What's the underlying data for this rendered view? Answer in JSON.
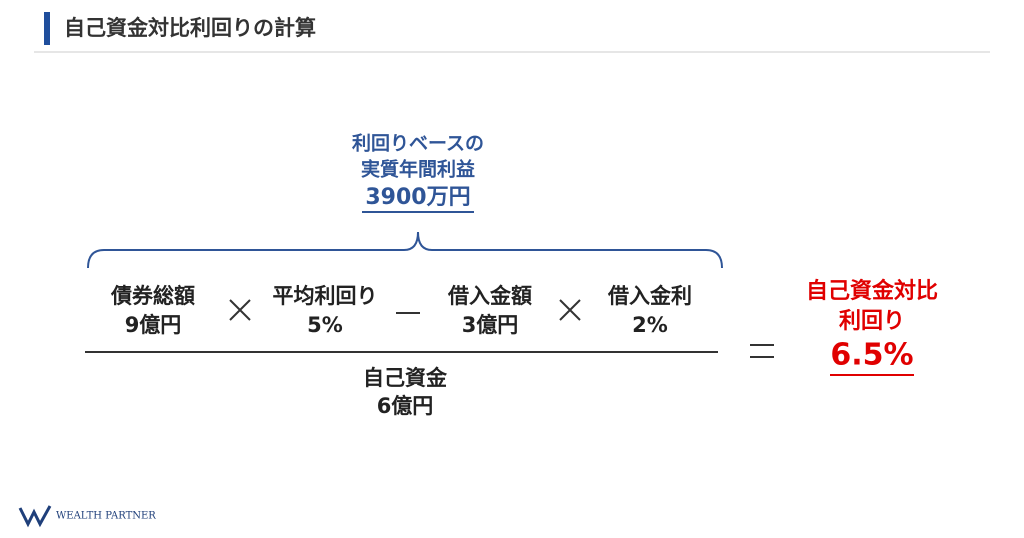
{
  "header": {
    "title": "自己資金対比利回りの計算"
  },
  "annotation": {
    "lines": [
      "利回りベースの",
      "実質年間利益"
    ],
    "amount": "3900万円"
  },
  "numerator": [
    {
      "label": "債券総額",
      "value": "9億円"
    },
    {
      "label": "平均利回り",
      "value": "5%"
    },
    {
      "label": "借入金額",
      "value": "3億円"
    },
    {
      "label": "借入金利",
      "value": "2%"
    }
  ],
  "denominator": {
    "label": "自己資金",
    "value": "6億円"
  },
  "result": {
    "lines": [
      "自己資金対比",
      "利回り"
    ],
    "value": "6.5%"
  },
  "footer": {
    "logo": "WEALTH PARTNER"
  }
}
